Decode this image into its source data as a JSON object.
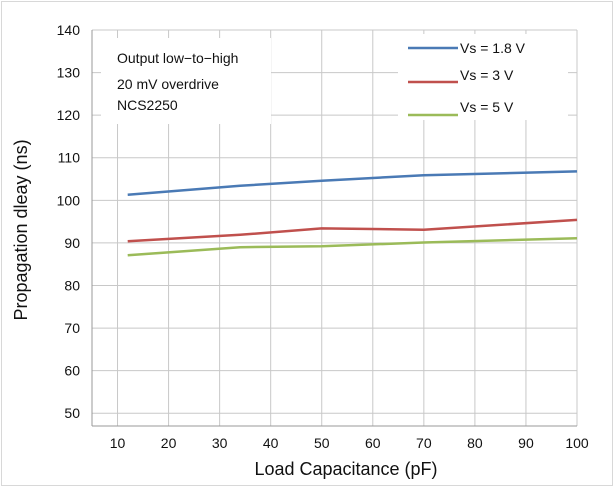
{
  "chart_data": {
    "type": "line",
    "title": "",
    "xlabel": "Load Capacitance (pF)",
    "ylabel": "Propagation dleay (ns)",
    "xlim": [
      5,
      100
    ],
    "ylim": [
      47,
      140
    ],
    "xticks": [
      10,
      20,
      30,
      40,
      50,
      60,
      70,
      80,
      90,
      100
    ],
    "yticks": [
      50,
      60,
      70,
      80,
      90,
      100,
      110,
      120,
      130,
      140
    ],
    "grid": true,
    "legend_position": "top-right",
    "annotations": [
      "Output low−to−high",
      "20 mV overdrive",
      "NCS2250"
    ],
    "series": [
      {
        "name": "Vs = 1.8 V",
        "color": "#4a7ab5",
        "x": [
          12,
          34,
          50,
          70,
          100
        ],
        "y": [
          101.3,
          103.4,
          104.6,
          105.9,
          106.8
        ]
      },
      {
        "name": "Vs = 3 V",
        "color": "#c0504d",
        "x": [
          12,
          34,
          50,
          70,
          100
        ],
        "y": [
          90.4,
          91.9,
          93.4,
          93.1,
          95.4
        ]
      },
      {
        "name": "Vs = 5 V",
        "color": "#9bbb59",
        "x": [
          12,
          34,
          50,
          70,
          100
        ],
        "y": [
          87.1,
          89.0,
          89.2,
          90.1,
          91.1
        ]
      }
    ]
  }
}
